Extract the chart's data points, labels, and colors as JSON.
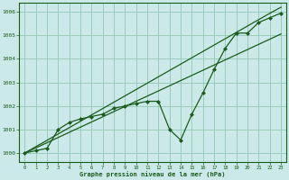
{
  "bg_color": "#cbe9e9",
  "grid_color": "#99ccbb",
  "line_color": "#1a5c1a",
  "xlabel": "Graphe pression niveau de la mer (hPa)",
  "ylim": [
    999.6,
    1006.4
  ],
  "xlim": [
    -0.5,
    23.5
  ],
  "yticks": [
    1000,
    1001,
    1002,
    1003,
    1004,
    1005,
    1006
  ],
  "xticks": [
    0,
    1,
    2,
    3,
    4,
    5,
    6,
    7,
    8,
    9,
    10,
    11,
    12,
    13,
    14,
    15,
    16,
    17,
    18,
    19,
    20,
    21,
    22,
    23
  ],
  "wavy": [
    1000.0,
    1000.1,
    1000.2,
    1001.0,
    1001.3,
    1001.45,
    1001.55,
    1001.65,
    1001.9,
    1002.0,
    1002.1,
    1002.2,
    1002.2,
    1001.0,
    1000.55,
    1001.65,
    1002.55,
    1003.55,
    1004.45,
    1005.1,
    1005.1,
    1005.55,
    1005.75,
    1005.95
  ],
  "trend1": [
    1000.0,
    1000.27,
    1000.54,
    1000.81,
    1001.08,
    1001.35,
    1001.62,
    1001.89,
    1002.16,
    1002.43,
    1002.7,
    1002.97,
    1003.24,
    1003.51,
    1003.78,
    1004.05,
    1004.32,
    1004.59,
    1004.86,
    1005.13,
    1005.4,
    1005.67,
    1005.94,
    1006.2
  ],
  "trend2": [
    1000.0,
    1000.22,
    1000.44,
    1000.66,
    1000.88,
    1001.1,
    1001.32,
    1001.54,
    1001.76,
    1001.98,
    1002.2,
    1002.42,
    1002.64,
    1002.86,
    1003.08,
    1003.3,
    1003.52,
    1003.74,
    1003.96,
    1004.18,
    1004.4,
    1004.62,
    1004.84,
    1005.06
  ]
}
